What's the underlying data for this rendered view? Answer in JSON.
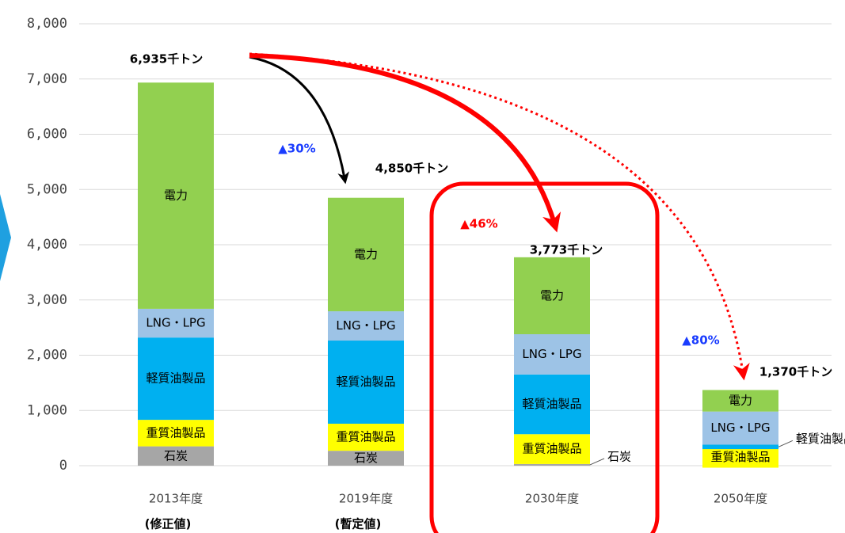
{
  "chart_data": {
    "type": "stacked_bar",
    "categories": [
      "2013年度",
      "2019年度",
      "2030年度",
      "2050年度"
    ],
    "category_notes": [
      "(修正値)",
      "(暫定値)",
      null,
      null
    ],
    "series": [
      {
        "name": "石炭",
        "color": "#a6a6a6",
        "values": [
          350,
          270,
          30,
          0
        ]
      },
      {
        "name": "重質油製品",
        "color": "#ffff00",
        "values": [
          480,
          490,
          540,
          300
        ]
      },
      {
        "name": "軽質油製品",
        "color": "#00b0f0",
        "values": [
          1490,
          1505,
          1080,
          80
        ]
      },
      {
        "name": "LNG・LPG",
        "color": "#9dc3e6",
        "values": [
          520,
          530,
          730,
          600
        ]
      },
      {
        "name": "電力",
        "color": "#92d050",
        "values": [
          4095,
          2055,
          1393,
          390
        ]
      }
    ],
    "total_labels": [
      "6,935千トン",
      "4,850千トン",
      "3,773千トン",
      "1,370千トン"
    ],
    "change_labels": [
      "▲30%",
      "▲46%",
      "▲80%"
    ],
    "ylim": [
      0,
      8000
    ],
    "yticks": [
      0,
      {
        "value": 1000,
        "label": "1,000"
      },
      {
        "value": 2000,
        "label": "2,000"
      },
      {
        "value": 3000,
        "label": "3,000"
      },
      {
        "value": 4000,
        "label": "4,000"
      },
      {
        "value": 5000,
        "label": "5,000"
      },
      {
        "value": 6000,
        "label": "6,000"
      },
      {
        "value": 7000,
        "label": "7,000"
      },
      {
        "value": 8000,
        "label": "8,000"
      }
    ],
    "grid": true
  }
}
